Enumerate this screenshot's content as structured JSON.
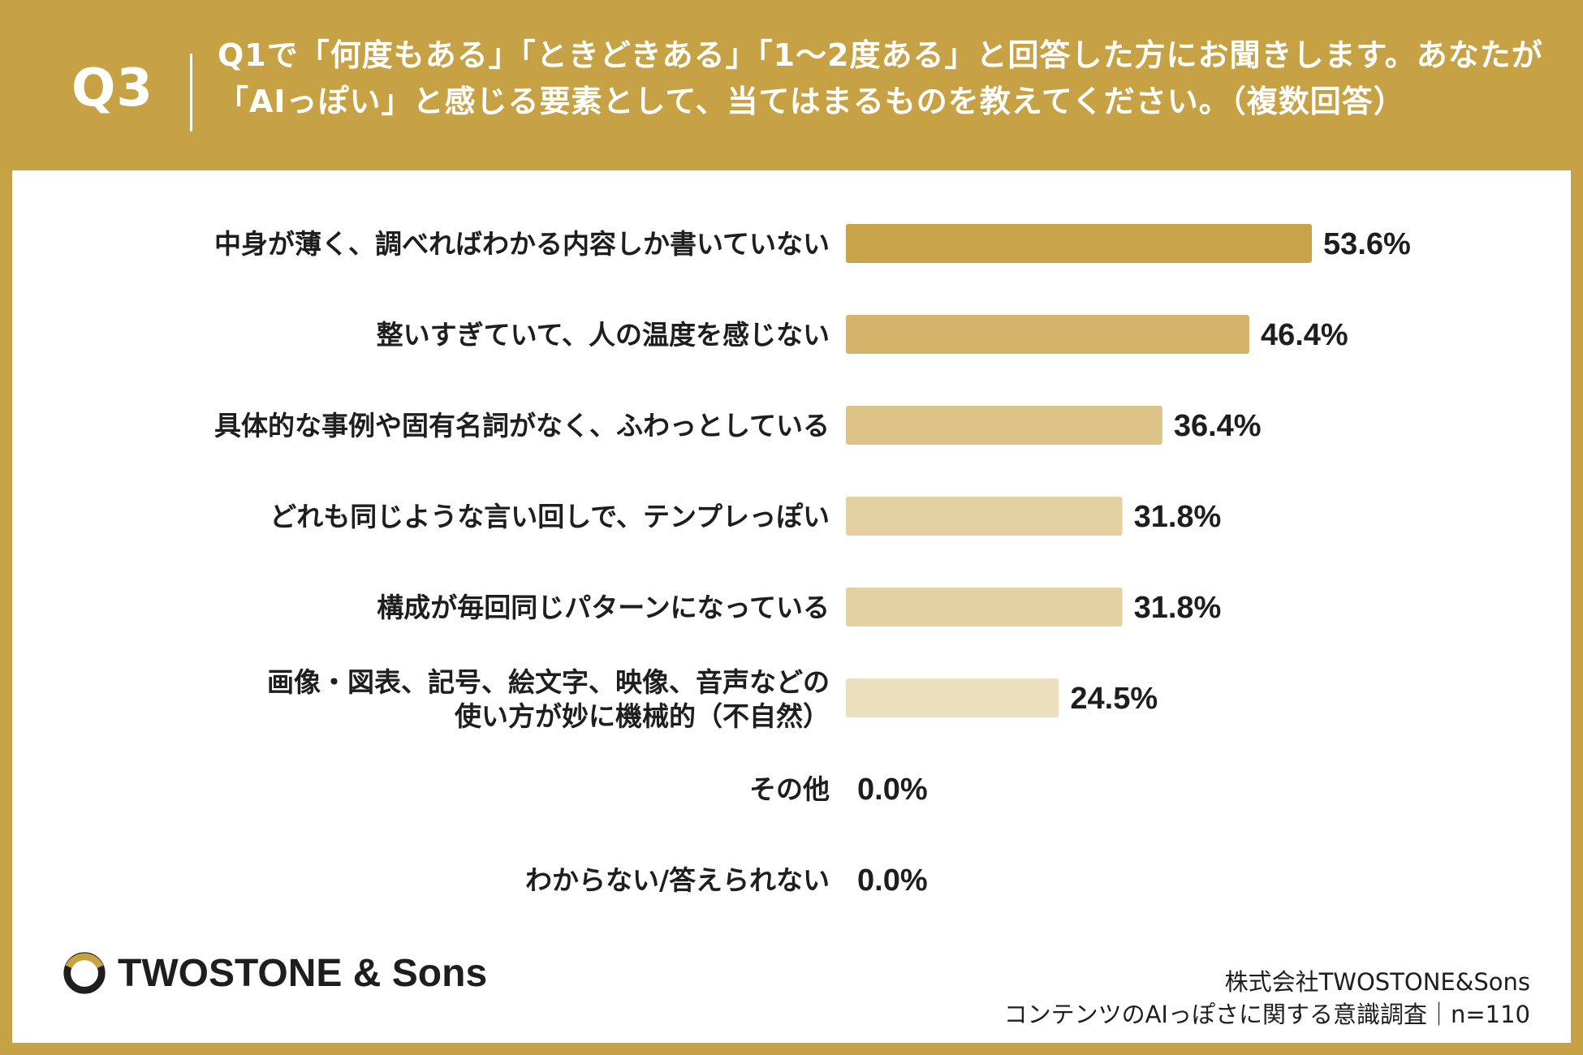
{
  "header": {
    "q_label": "Q3",
    "question": "Q1で「何度もある」「ときどきある」「1〜2度ある」と回答した方にお聞きします。あなたが「AIっぽい」と感じる要素として、当てはまるものを教えてください。（複数回答）"
  },
  "chart_data": {
    "type": "bar",
    "orientation": "horizontal",
    "categories": [
      "中身が薄く、調べればわかる内容しか書いていない",
      "整いすぎていて、人の温度を感じない",
      "具体的な事例や固有名詞がなく、ふわっとしている",
      "どれも同じような言い回しで、テンプレっぽい",
      "構成が毎回同じパターンになっている",
      "画像・図表、記号、絵文字、映像、音声などの\n使い方が妙に機械的（不自然）",
      "その他",
      "わからない/答えられない"
    ],
    "values": [
      53.6,
      46.4,
      36.4,
      31.8,
      31.8,
      24.5,
      0.0,
      0.0
    ],
    "value_labels": [
      "53.6%",
      "46.4%",
      "36.4%",
      "31.8%",
      "31.8%",
      "24.5%",
      "0.0%",
      "0.0%"
    ],
    "bar_colors": [
      "#c9a34a",
      "#d4b46b",
      "#dcc489",
      "#e4d1a2",
      "#e4d1a2",
      "#ecdfbe",
      "#ecdfbe",
      "#ecdfbe"
    ],
    "xlim": [
      0,
      100
    ],
    "grid": false,
    "legend": "none"
  },
  "footer": {
    "logo_text": "TWOSTONE & Sons",
    "company": "株式会社TWOSTONE&Sons",
    "survey": "コンテンツのAIっぽさに関する意識調査｜n=110"
  },
  "colors": {
    "background": "#c7a245",
    "panel": "#ffffff",
    "text": "#1e1e1e"
  }
}
